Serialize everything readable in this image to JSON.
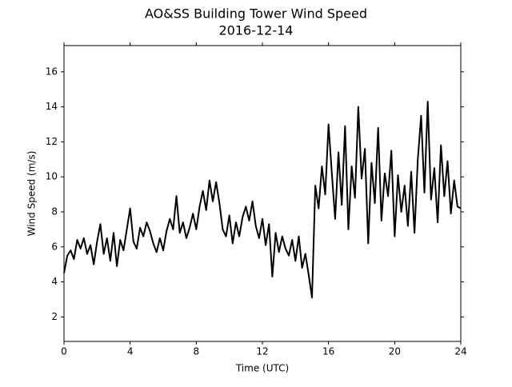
{
  "chart_data": {
    "type": "line",
    "title": "AO&SS Building Tower Wind Speed",
    "subtitle": "2016-12-14",
    "x_label": "Time (UTC)",
    "y_label": "Wind Speed (m/s)",
    "x": [
      0,
      0.2,
      0.4,
      0.6,
      0.8,
      1,
      1.2,
      1.4,
      1.6,
      1.8,
      2,
      2.2,
      2.4,
      2.6,
      2.8,
      3,
      3.2,
      3.4,
      3.6,
      3.8,
      4,
      4.2,
      4.4,
      4.6,
      4.8,
      5,
      5.2,
      5.4,
      5.6,
      5.8,
      6,
      6.2,
      6.4,
      6.6,
      6.8,
      7,
      7.2,
      7.4,
      7.6,
      7.8,
      8,
      8.2,
      8.4,
      8.6,
      8.8,
      9,
      9.2,
      9.4,
      9.6,
      9.8,
      10,
      10.2,
      10.4,
      10.6,
      10.8,
      11,
      11.2,
      11.4,
      11.6,
      11.8,
      12,
      12.2,
      12.4,
      12.6,
      12.8,
      13,
      13.2,
      13.4,
      13.6,
      13.8,
      14,
      14.2,
      14.4,
      14.6,
      14.8,
      15,
      15.2,
      15.4,
      15.6,
      15.8,
      16,
      16.2,
      16.4,
      16.6,
      16.8,
      17,
      17.2,
      17.4,
      17.6,
      17.8,
      18,
      18.2,
      18.4,
      18.6,
      18.8,
      19,
      19.2,
      19.4,
      19.6,
      19.8,
      20,
      20.2,
      20.4,
      20.6,
      20.8,
      21,
      21.2,
      21.4,
      21.6,
      21.8,
      22,
      22.2,
      22.4,
      22.6,
      22.8,
      23,
      23.2,
      23.4,
      23.6,
      23.8,
      24
    ],
    "series": [
      {
        "name": "Wind Speed",
        "color": "#000000",
        "values": [
          4.5,
          5.5,
          5.8,
          5.3,
          6.4,
          5.9,
          6.5,
          5.6,
          6.1,
          5.0,
          6.3,
          7.3,
          5.6,
          6.5,
          5.2,
          6.8,
          4.9,
          6.4,
          5.8,
          7.0,
          8.2,
          6.3,
          5.9,
          7.1,
          6.6,
          7.4,
          6.9,
          6.2,
          5.7,
          6.5,
          5.8,
          6.9,
          7.6,
          7.0,
          8.9,
          6.8,
          7.4,
          6.5,
          7.1,
          7.9,
          7.0,
          8.3,
          9.2,
          8.1,
          9.8,
          8.6,
          9.7,
          8.5,
          7.0,
          6.6,
          7.8,
          6.2,
          7.4,
          6.6,
          7.7,
          8.3,
          7.5,
          8.6,
          7.2,
          6.5,
          7.6,
          6.1,
          7.3,
          4.3,
          6.8,
          5.7,
          6.6,
          5.9,
          5.5,
          6.4,
          5.2,
          6.6,
          4.8,
          5.6,
          4.4,
          3.1,
          9.5,
          8.2,
          10.6,
          9.0,
          13.0,
          10.2,
          7.6,
          11.4,
          8.4,
          12.9,
          7.0,
          10.6,
          8.8,
          14.0,
          9.9,
          11.6,
          6.2,
          10.8,
          8.5,
          12.8,
          7.5,
          10.2,
          8.9,
          11.5,
          6.6,
          10.1,
          8.0,
          9.5,
          7.2,
          10.3,
          6.8,
          11.0,
          13.5,
          9.1,
          14.3,
          8.7,
          10.5,
          7.4,
          11.8,
          8.9,
          10.9,
          7.9,
          9.8,
          8.3,
          8.2
        ]
      }
    ],
    "xlim": [
      0,
      24
    ],
    "xticks": [
      0,
      4,
      8,
      12,
      16,
      20,
      24
    ],
    "ylim": [
      0.6,
      17.5
    ],
    "yticks": [
      2,
      4,
      6,
      8,
      10,
      12,
      14,
      16
    ]
  }
}
